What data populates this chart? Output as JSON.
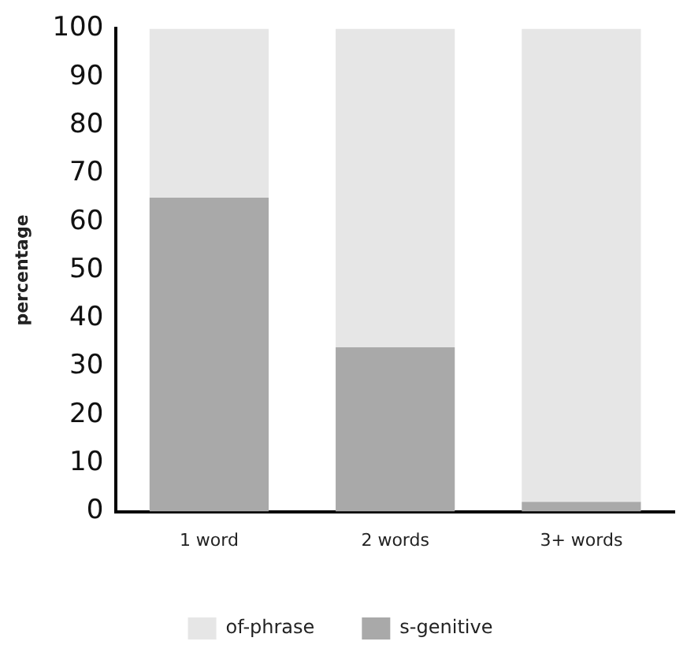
{
  "chart_data": {
    "type": "bar",
    "stacked": true,
    "ylabel": "percentage",
    "categories": [
      "1 word",
      "2 words",
      "3+ words"
    ],
    "series": [
      {
        "name": "s-genitive",
        "color": "#a9a9a9",
        "values": [
          65,
          34,
          2
        ]
      },
      {
        "name": "of-phrase",
        "color": "#e6e6e6",
        "values": [
          35,
          66,
          98
        ]
      }
    ],
    "ylim": [
      0,
      100
    ],
    "yticks": [
      0,
      10,
      20,
      30,
      40,
      50,
      60,
      70,
      80,
      90,
      100
    ],
    "grid": false,
    "legend": "bottom"
  }
}
